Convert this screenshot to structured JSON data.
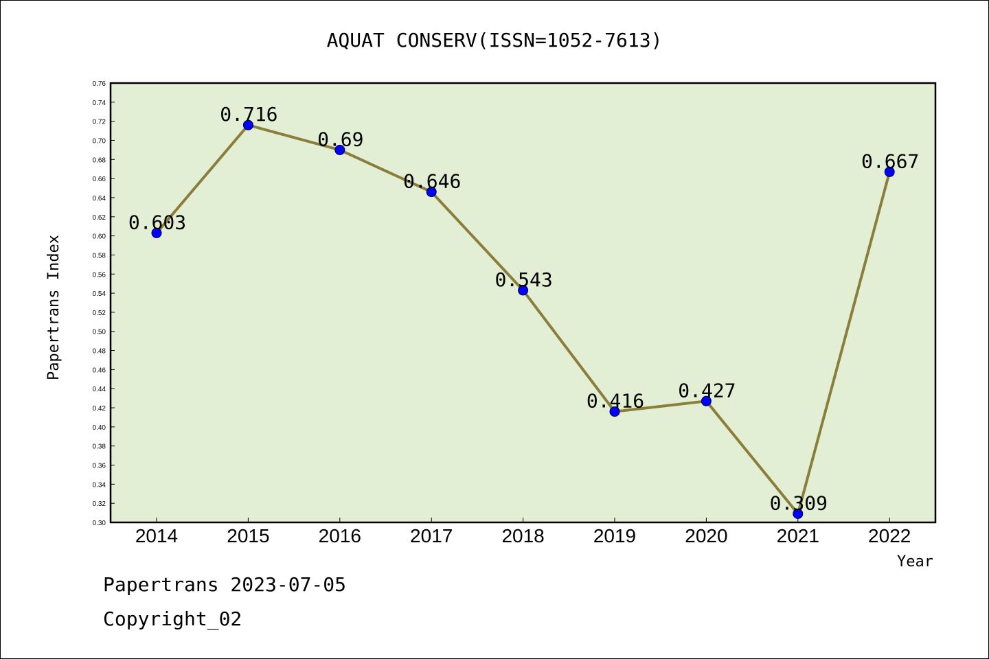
{
  "chart_data": {
    "type": "line",
    "title": "AQUAT CONSERV(ISSN=1052-7613)",
    "xlabel": "Year",
    "ylabel": "Papertrans Index",
    "categories": [
      "2014",
      "2015",
      "2016",
      "2017",
      "2018",
      "2019",
      "2020",
      "2021",
      "2022"
    ],
    "series": [
      {
        "values": [
          0.603,
          0.716,
          0.69,
          0.646,
          0.543,
          0.416,
          0.427,
          0.309,
          0.667
        ]
      }
    ],
    "data_labels": [
      "0.603",
      "0.716",
      "0.69",
      "0.646",
      "0.543",
      "0.416",
      "0.427",
      "0.309",
      "0.667"
    ],
    "ylim": [
      0.3,
      0.76
    ],
    "yticks": [
      "0.30",
      "0.32",
      "0.34",
      "0.36",
      "0.38",
      "0.40",
      "0.42",
      "0.44",
      "0.46",
      "0.48",
      "0.50",
      "0.52",
      "0.54",
      "0.56",
      "0.58",
      "0.60",
      "0.62",
      "0.64",
      "0.66",
      "0.68",
      "0.70",
      "0.72",
      "0.74",
      "0.76"
    ],
    "grid": false,
    "colors": {
      "plot_background": "#e2efd5",
      "line": "#8b7d3a",
      "marker": "#0000ff"
    }
  },
  "footer": {
    "date_line": "Papertrans 2023-07-05",
    "copyright_line": "Copyright_02"
  }
}
